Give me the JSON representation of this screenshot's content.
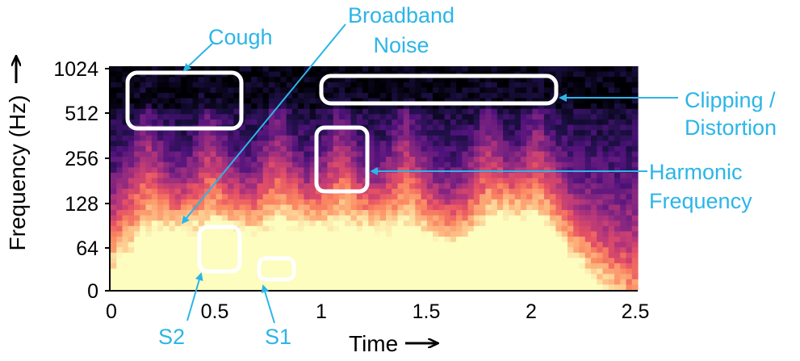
{
  "chart_data": {
    "type": "heatmap",
    "xlabel": "Time",
    "ylabel": "Frequency (Hz)",
    "xlim": [
      0,
      2.5
    ],
    "ylim": [
      0,
      1024
    ],
    "y_scale": "log2 (with 0 at bottom)",
    "x_ticks": [
      "0",
      "0.5",
      "1",
      "1.5",
      "2",
      "2.5"
    ],
    "y_ticks": [
      "0",
      "64",
      "128",
      "256",
      "512",
      "1024"
    ],
    "colormap": "magma",
    "event_onsets_s": [
      0.17,
      0.47,
      0.79,
      1.09,
      1.4,
      1.79,
      2.02
    ],
    "annotations": [
      {
        "label": "Cough",
        "t_range": [
          0.1,
          0.62
        ],
        "f_range": [
          430,
          1000
        ]
      },
      {
        "label": "Broadband Noise",
        "t_range": [
          0.2,
          1.05
        ],
        "f_range": [
          80,
          1024
        ]
      },
      {
        "label": "Clipping / Distortion",
        "t_range": [
          1.0,
          2.12
        ],
        "f_range": [
          620,
          1000
        ]
      },
      {
        "label": "Harmonic Frequency",
        "t_range": [
          1.0,
          1.22
        ],
        "f_range": [
          150,
          320
        ]
      },
      {
        "label": "S2",
        "t_range": [
          0.43,
          0.62
        ],
        "f_range": [
          32,
          90
        ]
      },
      {
        "label": "S1",
        "t_range": [
          0.7,
          0.88
        ],
        "f_range": [
          20,
          36
        ]
      }
    ]
  },
  "labels": {
    "y_axis": "Frequency (Hz)",
    "x_axis": "Time",
    "cough": "Cough",
    "broadband_line1": "Broadband",
    "broadband_line2": "Noise",
    "clipping_line1": "Clipping /",
    "clipping_line2": "Distortion",
    "harmonic_line1": "Harmonic",
    "harmonic_line2": "Frequency",
    "s2": "S2",
    "s1": "S1"
  },
  "colors": {
    "annotation": "#2cb5e8",
    "box": "#ffffff",
    "axis": "#000000"
  }
}
